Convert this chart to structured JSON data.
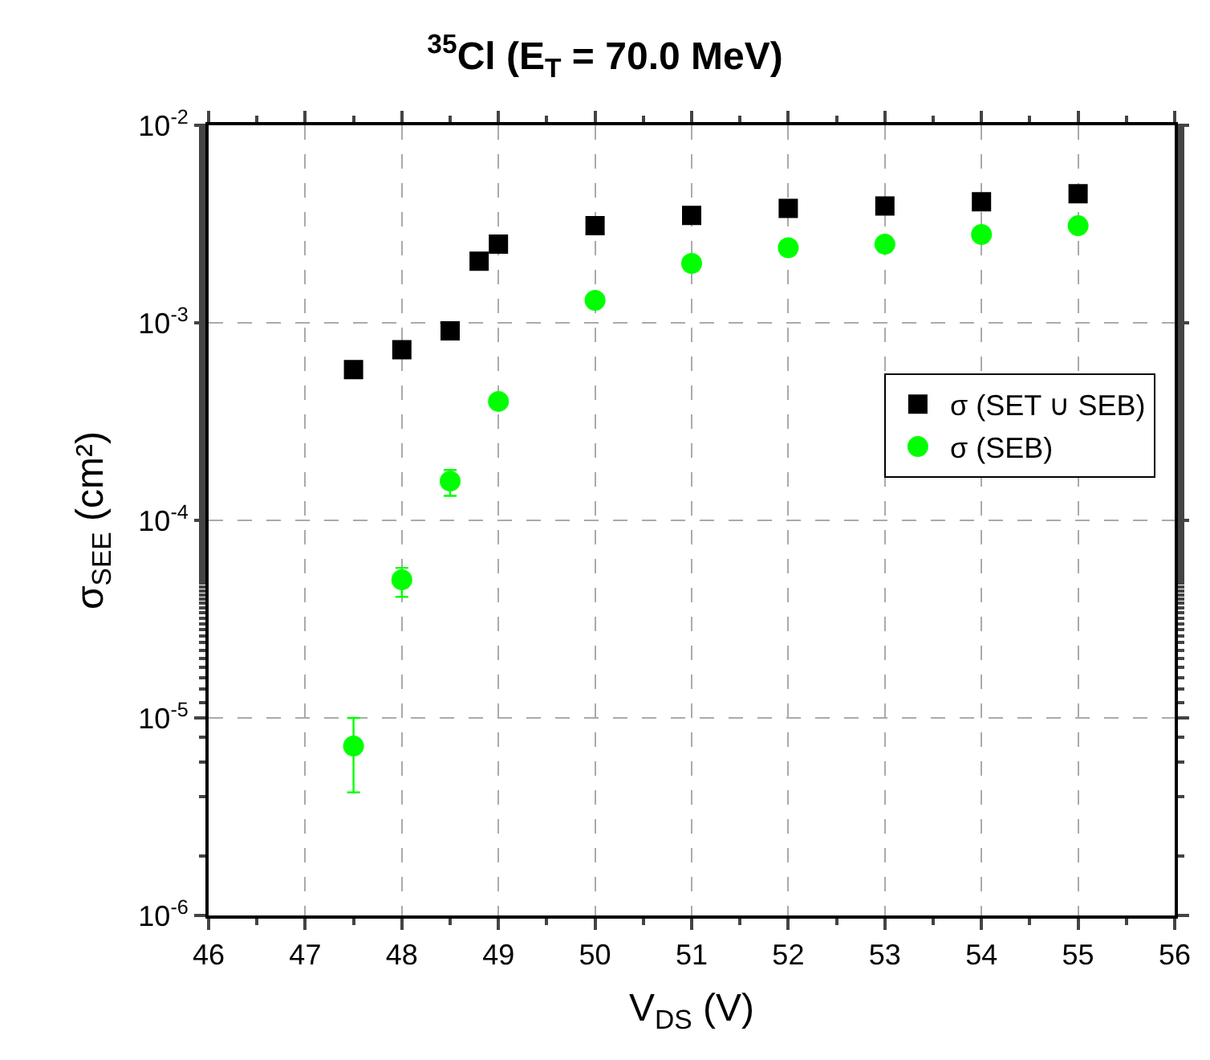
{
  "chart_data": {
    "type": "scatter",
    "title": "$^{35}$Cl (E$_{T}$ = 70.0 MeV)",
    "xlabel": "V$_{DS}$ (V)",
    "ylabel": "σ$_{SEE}$ (cm²)",
    "log": "y",
    "grid": true,
    "legend": "right",
    "xlim": [
      46,
      56
    ],
    "xticks": [
      46,
      47,
      48,
      49,
      50,
      51,
      52,
      53,
      54,
      55,
      56
    ],
    "ylim": [
      1e-06,
      0.01
    ],
    "yticks": [
      {
        "value": 1e-06,
        "label": "10$^{-6}$"
      },
      {
        "value": 1e-05,
        "label": "10$^{-5}$"
      },
      {
        "value": 0.0001,
        "label": "10$^{-4}$"
      },
      {
        "value": 0.001,
        "label": "10$^{-3}$"
      },
      {
        "value": 0.01,
        "label": "10$^{-2}$"
      }
    ],
    "series": [
      {
        "name": "σ (SET ∪ SEB)",
        "color": "#000000",
        "marker": "square",
        "x": [
          47.5,
          48,
          48.5,
          48.8,
          49,
          50,
          51,
          52,
          53,
          54,
          55
        ],
        "values": [
          0.00058,
          0.00073,
          0.00091,
          0.00205,
          0.0025,
          0.0031,
          0.0035,
          0.0038,
          0.0039,
          0.0041,
          0.0045
        ]
      },
      {
        "name": "σ (SEB)",
        "color": "#00ff00",
        "marker": "circle",
        "x": [
          47.5,
          48,
          48.5,
          49,
          50,
          51,
          52,
          53,
          54,
          55
        ],
        "values": [
          7.2e-06,
          5e-05,
          0.000158,
          0.0004,
          0.0013,
          0.002,
          0.0024,
          0.0025,
          0.0028,
          0.0031
        ],
        "errors": [
          [
            4.2e-06,
            1e-05
          ],
          [
            4.1e-05,
            5.75e-05
          ],
          [
            0.000133,
            0.00018
          ],
          null,
          null,
          null,
          null,
          null,
          null,
          null
        ]
      }
    ]
  }
}
